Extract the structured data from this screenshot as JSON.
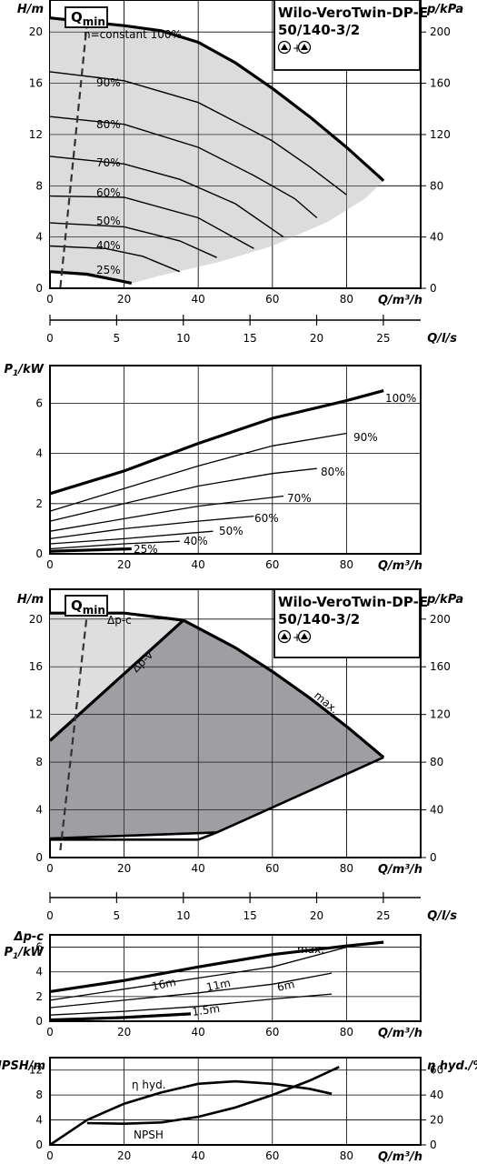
{
  "model": {
    "line1": "Wilo-VeroTwin-DP-E",
    "line2": "50/140-3/2",
    "pumps": "+",
    "qmin_main": "Q",
    "qmin_sub": "min"
  },
  "chart_data": [
    {
      "type": "line",
      "xlabel": "Q/m³/h",
      "ylabel": "H/m",
      "y2label": "p/kPa",
      "xlim": [
        0,
        100
      ],
      "ylim": [
        0,
        22.5
      ],
      "x_ticks": [
        "0",
        "20",
        "40",
        "60",
        "80"
      ],
      "y_ticks": [
        "0",
        "4",
        "8",
        "12",
        "16",
        "20"
      ],
      "y2_ticks": [
        "0",
        "40",
        "80",
        "120",
        "160",
        "200"
      ],
      "grid": true,
      "series": [
        {
          "name": "n=constant 100%",
          "x": [
            0,
            10,
            20,
            30,
            40,
            50,
            60,
            70,
            80,
            90
          ],
          "y": [
            21.1,
            20.8,
            20.5,
            20.1,
            19.2,
            17.6,
            15.6,
            13.4,
            11.0,
            8.4
          ]
        },
        {
          "name": "90%",
          "x": [
            0,
            20,
            40,
            60,
            70,
            80
          ],
          "y": [
            16.9,
            16.2,
            14.5,
            11.5,
            9.5,
            7.3
          ]
        },
        {
          "name": "80%",
          "x": [
            0,
            20,
            40,
            55,
            66,
            72
          ],
          "y": [
            13.4,
            12.8,
            11.0,
            8.8,
            7.0,
            5.5
          ]
        },
        {
          "name": "70%",
          "x": [
            0,
            20,
            35,
            50,
            63
          ],
          "y": [
            10.3,
            9.7,
            8.5,
            6.6,
            4.0
          ]
        },
        {
          "name": "60%",
          "x": [
            0,
            20,
            40,
            55
          ],
          "y": [
            7.2,
            7.1,
            5.5,
            3.1
          ]
        },
        {
          "name": "50%",
          "x": [
            0,
            20,
            35,
            45
          ],
          "y": [
            5.1,
            4.8,
            3.7,
            2.4
          ]
        },
        {
          "name": "40%",
          "x": [
            0,
            15,
            25,
            35
          ],
          "y": [
            3.3,
            3.1,
            2.5,
            1.3
          ]
        },
        {
          "name": "25%",
          "x": [
            0,
            10,
            22
          ],
          "y": [
            1.3,
            1.1,
            0.4
          ]
        }
      ],
      "annotations": [
        "n=constant 100%",
        "90%",
        "80%",
        "70%",
        "60%",
        "50%",
        "40%",
        "25%"
      ]
    },
    {
      "type": "axis",
      "xlabel": "Q/l/s",
      "x_ticks": [
        "0",
        "5",
        "10",
        "15",
        "20",
        "25"
      ],
      "xlim": [
        0,
        27.8
      ]
    },
    {
      "type": "line",
      "xlabel": "Q/m³/h",
      "ylabel": "P1/kW",
      "xlim": [
        0,
        100
      ],
      "ylim": [
        0,
        7.5
      ],
      "x_ticks": [
        "0",
        "20",
        "40",
        "60",
        "80"
      ],
      "y_ticks": [
        "0",
        "2",
        "4",
        "6"
      ],
      "grid": true,
      "series": [
        {
          "name": "100%",
          "x": [
            0,
            20,
            40,
            60,
            80,
            90
          ],
          "y": [
            2.4,
            3.3,
            4.4,
            5.4,
            6.1,
            6.5
          ]
        },
        {
          "name": "90%",
          "x": [
            0,
            20,
            40,
            60,
            80
          ],
          "y": [
            1.7,
            2.6,
            3.5,
            4.3,
            4.8
          ]
        },
        {
          "name": "80%",
          "x": [
            0,
            20,
            40,
            60,
            72
          ],
          "y": [
            1.3,
            2.0,
            2.7,
            3.2,
            3.4
          ]
        },
        {
          "name": "70%",
          "x": [
            0,
            20,
            40,
            63
          ],
          "y": [
            0.9,
            1.4,
            1.9,
            2.3
          ]
        },
        {
          "name": "60%",
          "x": [
            0,
            20,
            40,
            55
          ],
          "y": [
            0.6,
            1.0,
            1.3,
            1.5
          ]
        },
        {
          "name": "50%",
          "x": [
            0,
            20,
            44
          ],
          "y": [
            0.4,
            0.6,
            0.9
          ]
        },
        {
          "name": "40%",
          "x": [
            0,
            20,
            35
          ],
          "y": [
            0.2,
            0.4,
            0.5
          ]
        },
        {
          "name": "25%",
          "x": [
            0,
            22
          ],
          "y": [
            0.1,
            0.2
          ]
        }
      ],
      "annotations": [
        "100%",
        "90%",
        "80%",
        "70%",
        "60%",
        "50%",
        "40%",
        "25%"
      ]
    },
    {
      "type": "area",
      "xlabel": "Q/m³/h",
      "ylabel": "H/m",
      "y2label": "p/kPa",
      "xlim": [
        0,
        100
      ],
      "ylim": [
        0,
        22.5
      ],
      "x_ticks": [
        "0",
        "20",
        "40",
        "60",
        "80"
      ],
      "y_ticks": [
        "0",
        "4",
        "8",
        "12",
        "16",
        "20"
      ],
      "y2_ticks": [
        "0",
        "40",
        "80",
        "120",
        "160",
        "200"
      ],
      "grid": true,
      "series": [
        {
          "name": "max.",
          "x": [
            0,
            20,
            36,
            50,
            60,
            70,
            80,
            90
          ],
          "y": [
            20.5,
            20.5,
            19.9,
            17.6,
            15.6,
            13.4,
            11.0,
            8.4
          ]
        },
        {
          "name": "Δp-v",
          "x": [
            0,
            36
          ],
          "y": [
            9.8,
            19.9
          ]
        },
        {
          "name": "Δp-c",
          "x": [
            0,
            36
          ],
          "y": [
            20.5,
            20.5
          ]
        }
      ],
      "annotations": [
        "Δp-c",
        "Δp-v",
        "max."
      ]
    },
    {
      "type": "axis",
      "xlabel": "Q/l/s",
      "x_ticks": [
        "0",
        "5",
        "10",
        "15",
        "20",
        "25"
      ],
      "xlim": [
        0,
        27.8
      ]
    },
    {
      "type": "line",
      "xlabel": "Q/m³/h",
      "ylabel_1": "Δp-c",
      "ylabel_2": "P1/kW",
      "xlim": [
        0,
        100
      ],
      "ylim": [
        0,
        7
      ],
      "x_ticks": [
        "0",
        "20",
        "40",
        "60",
        "80"
      ],
      "y_ticks": [
        "0",
        "2",
        "4",
        "6"
      ],
      "grid": true,
      "series": [
        {
          "name": "max.",
          "x": [
            0,
            20,
            40,
            60,
            80,
            90
          ],
          "y": [
            2.4,
            3.3,
            4.4,
            5.4,
            6.1,
            6.4
          ]
        },
        {
          "name": "16m",
          "x": [
            0,
            20,
            40,
            60,
            80
          ],
          "y": [
            1.7,
            2.6,
            3.5,
            4.4,
            6.0
          ]
        },
        {
          "name": "11m",
          "x": [
            0,
            20,
            40,
            60,
            76
          ],
          "y": [
            1.1,
            1.7,
            2.3,
            3.0,
            3.9
          ]
        },
        {
          "name": "6m",
          "x": [
            0,
            20,
            40,
            60,
            76
          ],
          "y": [
            0.5,
            0.8,
            1.2,
            1.8,
            2.2
          ]
        },
        {
          "name": "1.5m",
          "x": [
            0,
            20,
            38
          ],
          "y": [
            0.1,
            0.3,
            0.6
          ]
        }
      ],
      "annotations": [
        "max.",
        "16m",
        "11m",
        "6m",
        "1.5m"
      ]
    },
    {
      "type": "line",
      "xlabel": "Q/m³/h",
      "ylabel": "NPSH/m",
      "y2label": "η hyd./%",
      "xlim": [
        0,
        100
      ],
      "ylim": [
        0,
        14
      ],
      "x_ticks": [
        "0",
        "20",
        "40",
        "60",
        "80"
      ],
      "y_ticks": [
        "0",
        "4",
        "8",
        "12"
      ],
      "y2_ticks": [
        "0",
        "20",
        "40",
        "60"
      ],
      "grid": true,
      "series": [
        {
          "name": "η hyd.",
          "x": [
            0,
            10,
            20,
            30,
            40,
            50,
            60,
            70,
            76
          ],
          "y": [
            0,
            20,
            33,
            42,
            49,
            51,
            49,
            45,
            41
          ]
        },
        {
          "name": "NPSH",
          "x": [
            10,
            20,
            30,
            40,
            50,
            60,
            70,
            78
          ],
          "y": [
            3.5,
            3.4,
            3.6,
            4.5,
            6.0,
            8.0,
            10.3,
            12.5
          ]
        }
      ],
      "annotations": [
        "η hyd.",
        "NPSH"
      ]
    }
  ]
}
